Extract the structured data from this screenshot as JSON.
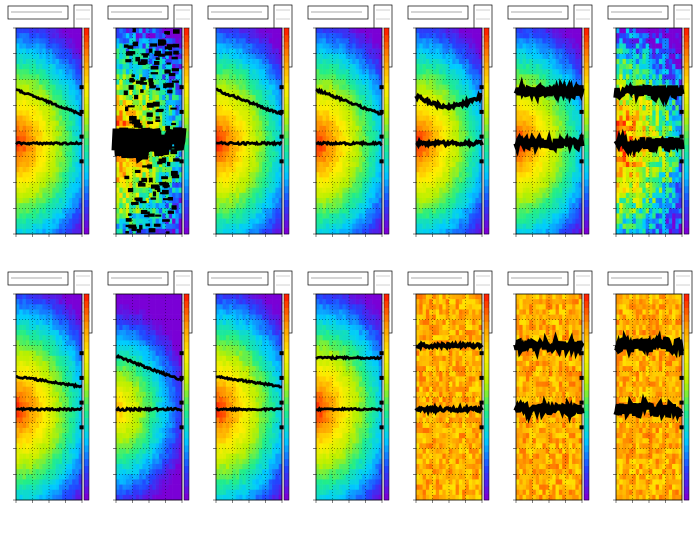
{
  "footer": "",
  "colors": {
    "scale": [
      "#7a00d6",
      "#2244ff",
      "#00ccff",
      "#22ee88",
      "#b8f000",
      "#ffee00",
      "#ff9900",
      "#ff2200"
    ],
    "marker": "#000000",
    "gridline": "#000000"
  },
  "chart_data": [
    {
      "type": "heatmap",
      "row": 1,
      "col": 1,
      "pattern": "smooth",
      "track_upper": "falling",
      "noise": 0.05,
      "markers": "low"
    },
    {
      "type": "heatmap",
      "row": 1,
      "col": 2,
      "pattern": "speckle",
      "track_upper": "none",
      "noise": 0.9,
      "markers": "very-high"
    },
    {
      "type": "heatmap",
      "row": 1,
      "col": 3,
      "pattern": "smooth",
      "track_upper": "falling",
      "noise": 0.1,
      "markers": "low"
    },
    {
      "type": "heatmap",
      "row": 1,
      "col": 4,
      "pattern": "smooth",
      "track_upper": "falling",
      "noise": 0.1,
      "markers": "low"
    },
    {
      "type": "heatmap",
      "row": 1,
      "col": 5,
      "pattern": "smooth",
      "track_upper": "dip",
      "noise": 0.15,
      "markers": "medium"
    },
    {
      "type": "heatmap",
      "row": 1,
      "col": 6,
      "pattern": "smooth",
      "track_upper": "flat",
      "noise": 0.35,
      "markers": "high"
    },
    {
      "type": "heatmap",
      "row": 1,
      "col": 7,
      "pattern": "speckle",
      "track_upper": "flat",
      "noise": 0.55,
      "markers": "high"
    },
    {
      "type": "heatmap",
      "row": 2,
      "col": 1,
      "pattern": "smooth",
      "track_upper": "slight",
      "noise": 0.05,
      "markers": "low"
    },
    {
      "type": "heatmap",
      "row": 2,
      "col": 2,
      "pattern": "smooth",
      "track_upper": "falling",
      "noise": 0.08,
      "markers": "low"
    },
    {
      "type": "heatmap",
      "row": 2,
      "col": 3,
      "pattern": "smooth",
      "track_upper": "slight",
      "noise": 0.05,
      "markers": "low"
    },
    {
      "type": "heatmap",
      "row": 2,
      "col": 4,
      "pattern": "smooth",
      "track_upper": "flat",
      "noise": 0.05,
      "markers": "low"
    },
    {
      "type": "heatmap",
      "row": 2,
      "col": 5,
      "pattern": "flat",
      "track_upper": "flat",
      "noise": 0.15,
      "markers": "medium"
    },
    {
      "type": "heatmap",
      "row": 2,
      "col": 6,
      "pattern": "flat",
      "track_upper": "flat",
      "noise": 0.35,
      "markers": "high"
    },
    {
      "type": "heatmap",
      "row": 2,
      "col": 7,
      "pattern": "flat",
      "track_upper": "flat",
      "noise": 0.55,
      "markers": "high"
    }
  ]
}
